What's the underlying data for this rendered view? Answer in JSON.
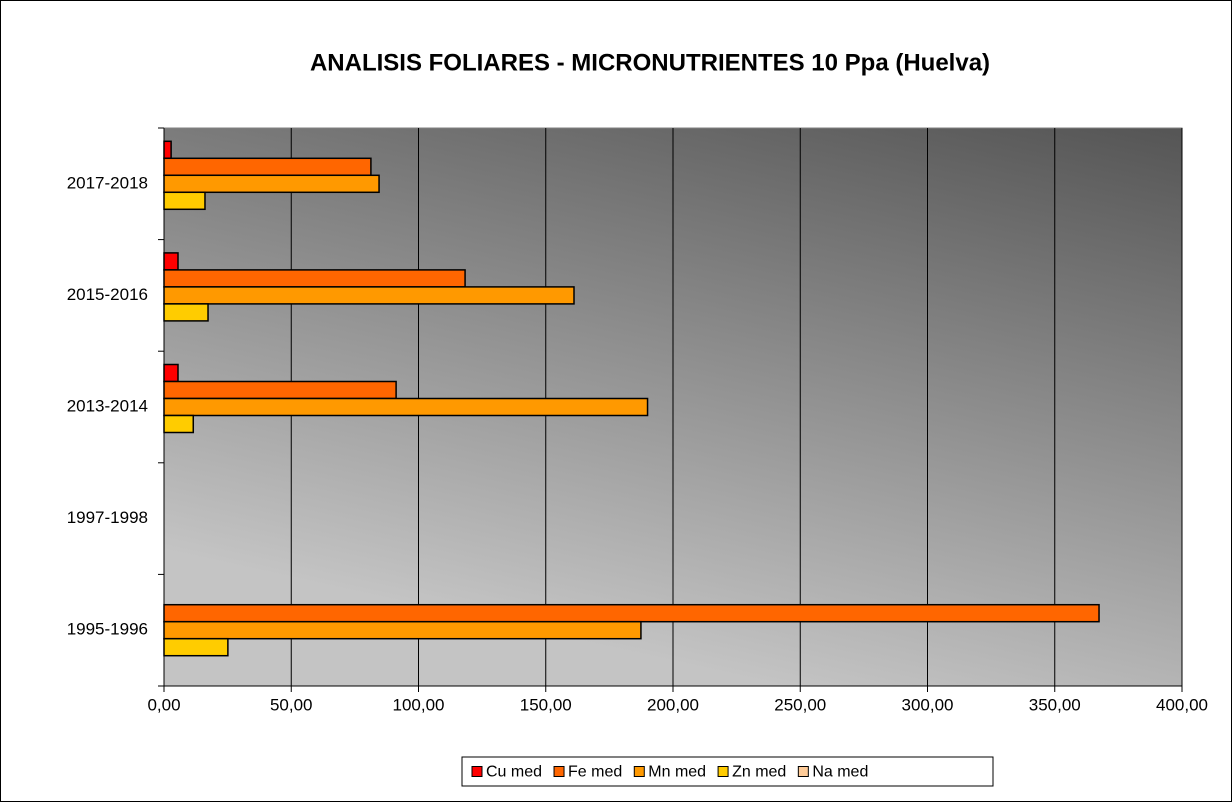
{
  "chart_data": {
    "type": "bar",
    "orientation": "horizontal",
    "title": "ANALISIS FOLIARES - MICRONUTRIENTES 10 Ppa (Huelva)",
    "categories": [
      "1995-1996",
      "1997-1998",
      "2013-2014",
      "2015-2016",
      "2017-2018"
    ],
    "series": [
      {
        "name": "Cu med",
        "color": "#ff0000",
        "values": [
          null,
          null,
          5.5,
          5.5,
          2.8
        ]
      },
      {
        "name": "Fe med",
        "color": "#ff6600",
        "values": [
          367.4,
          null,
          91.2,
          118.3,
          81.3
        ]
      },
      {
        "name": "Mn med",
        "color": "#ff9900",
        "values": [
          187.4,
          null,
          190,
          161.1,
          84.5
        ]
      },
      {
        "name": "Zn med",
        "color": "#ffcc00",
        "values": [
          25.1,
          null,
          11.5,
          17.3,
          16.1
        ]
      },
      {
        "name": "Na med",
        "color": "#ffcc99",
        "values": [
          null,
          null,
          null,
          null,
          null
        ]
      }
    ],
    "xlim": [
      0,
      400
    ],
    "xticks": [
      {
        "value": 0,
        "label": "0,00"
      },
      {
        "value": 50,
        "label": "50,00"
      },
      {
        "value": 100,
        "label": "100,00"
      },
      {
        "value": 150,
        "label": "150,00"
      },
      {
        "value": 200,
        "label": "200,00"
      },
      {
        "value": 250,
        "label": "250,00"
      },
      {
        "value": 300,
        "label": "300,00"
      },
      {
        "value": 350,
        "label": "350,00"
      },
      {
        "value": 400,
        "label": "400,00"
      }
    ],
    "grid": true,
    "legend": "bottom"
  }
}
